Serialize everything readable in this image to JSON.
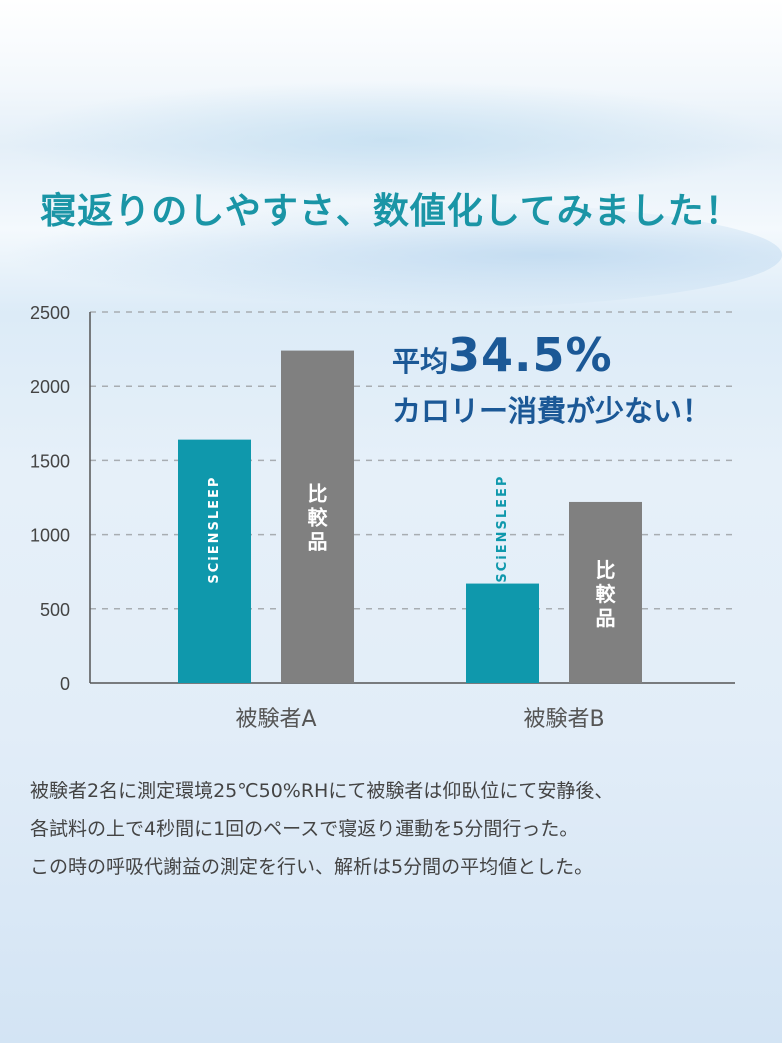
{
  "title": "寝返りのしやすさ、数値化してみました！",
  "callout": {
    "prefix": "平均",
    "value": "34.5%",
    "line2": "カロリー消費が少ない！"
  },
  "chart_data": {
    "type": "bar",
    "categories": [
      "被験者A",
      "被験者B"
    ],
    "series": [
      {
        "name": "SCiENSLEEP",
        "values": [
          1640,
          670
        ],
        "color": "#0f98ac"
      },
      {
        "name": "比較品",
        "values": [
          2240,
          1220
        ],
        "color": "#808080"
      }
    ],
    "ylim": [
      0,
      2500
    ],
    "yticks": [
      0,
      500,
      1000,
      1500,
      2000,
      2500
    ],
    "grid": true
  },
  "notes": [
    "被験者2名に測定環境25℃50%RHにて被験者は仰臥位にて安静後、",
    "各試料の上で4秒間に1回のペースで寝返り運動を5分間行った。",
    "この時の呼吸代謝益の測定を行い、解析は5分間の平均値とした。"
  ]
}
